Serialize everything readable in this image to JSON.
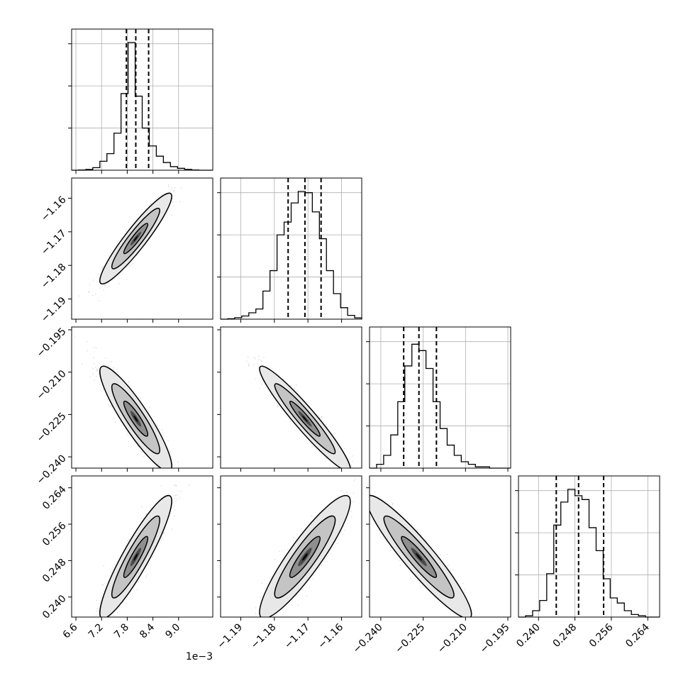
{
  "chart_data": {
    "type": "corner",
    "parameters": [
      {
        "index": 0,
        "range": [
          6.5,
          9.8
        ],
        "ticks": [
          6.6,
          7.2,
          7.8,
          8.4,
          9.0
        ],
        "tick_labels": [
          "6.6",
          "7.2",
          "7.8",
          "8.4",
          "9.0"
        ],
        "offset_text": "1e−3",
        "quantiles": [
          7.78,
          8.0,
          8.3
        ],
        "hist_bins": [
          6.5,
          6.665,
          6.83,
          6.995,
          7.16,
          7.325,
          7.49,
          7.655,
          7.82,
          7.985,
          8.15,
          8.315,
          8.48,
          8.645,
          8.81,
          8.975,
          9.14,
          9.305,
          9.47,
          9.635,
          9.8
        ],
        "hist_counts": [
          0.0,
          0.002,
          0.006,
          0.02,
          0.07,
          0.13,
          0.29,
          0.6,
          1.0,
          0.58,
          0.33,
          0.19,
          0.11,
          0.06,
          0.028,
          0.015,
          0.007,
          0.002,
          0.0,
          0.0
        ]
      },
      {
        "index": 1,
        "range": [
          -1.196,
          -1.154
        ],
        "ticks": [
          -1.19,
          -1.18,
          -1.17,
          -1.16
        ],
        "tick_labels": [
          "−1.19",
          "−1.18",
          "−1.17",
          "−1.16"
        ],
        "quantiles": [
          -1.1759,
          -1.1709,
          -1.1661
        ],
        "hist_bins": [
          -1.196,
          -1.1939,
          -1.1918,
          -1.1897,
          -1.1876,
          -1.1855,
          -1.1834,
          -1.1813,
          -1.1792,
          -1.1771,
          -1.175,
          -1.1729,
          -1.1708,
          -1.1687,
          -1.1666,
          -1.1645,
          -1.1624,
          -1.1603,
          -1.1582,
          -1.1561,
          -1.154
        ],
        "hist_counts": [
          0.0,
          0.003,
          0.012,
          0.025,
          0.05,
          0.08,
          0.22,
          0.38,
          0.66,
          0.76,
          0.91,
          1.0,
          0.99,
          0.84,
          0.63,
          0.38,
          0.2,
          0.09,
          0.03,
          0.01
        ]
      },
      {
        "index": 2,
        "range": [
          -0.244,
          -0.194
        ],
        "ticks": [
          -0.24,
          -0.225,
          -0.21,
          -0.195
        ],
        "tick_labels": [
          "−0.240",
          "−0.225",
          "−0.210",
          "−0.195"
        ],
        "quantiles": [
          -0.2319,
          -0.2265,
          -0.2203
        ],
        "hist_bins": [
          -0.244,
          -0.2415,
          -0.239,
          -0.2365,
          -0.234,
          -0.2315,
          -0.229,
          -0.2265,
          -0.224,
          -0.2215,
          -0.219,
          -0.2165,
          -0.214,
          -0.2115,
          -0.209,
          -0.2065,
          -0.204,
          -0.2015,
          -0.199,
          -0.1965,
          -0.194
        ],
        "hist_counts": [
          0.0,
          0.03,
          0.1,
          0.26,
          0.52,
          0.8,
          0.97,
          0.92,
          0.78,
          0.52,
          0.31,
          0.18,
          0.1,
          0.05,
          0.03,
          0.01,
          0.01,
          0.0,
          0.0,
          0.0
        ]
      },
      {
        "index": 3,
        "range": [
          0.2356,
          0.2666
        ],
        "ticks": [
          0.24,
          0.248,
          0.256,
          0.264
        ],
        "tick_labels": [
          "0.240",
          "0.248",
          "0.256",
          "0.264"
        ],
        "quantiles": [
          0.2439,
          0.2488,
          0.2543
        ],
        "hist_bins": [
          0.2356,
          0.23715,
          0.2387,
          0.24025,
          0.2418,
          0.24335,
          0.2449,
          0.24645,
          0.248,
          0.24955,
          0.2511,
          0.25265,
          0.2542,
          0.25575,
          0.2573,
          0.25885,
          0.2604,
          0.26195,
          0.2635,
          0.26505,
          0.2666
        ],
        "hist_counts": [
          0.0,
          0.01,
          0.05,
          0.13,
          0.34,
          0.72,
          0.9,
          1.0,
          0.95,
          0.92,
          0.7,
          0.52,
          0.3,
          0.15,
          0.11,
          0.05,
          0.02,
          0.01,
          0.0,
          0.0
        ]
      }
    ],
    "pairs": [
      {
        "x": 0,
        "y": 1,
        "mean": [
          8.0,
          -1.172
        ],
        "sigma": [
          0.28,
          0.0045
        ],
        "rho": 0.93
      },
      {
        "x": 0,
        "y": 2,
        "mean": [
          8.0,
          -0.2265
        ],
        "sigma": [
          0.28,
          0.0062
        ],
        "rho": -0.9
      },
      {
        "x": 0,
        "y": 3,
        "mean": [
          8.0,
          0.2488
        ],
        "sigma": [
          0.28,
          0.0045
        ],
        "rho": 0.91
      },
      {
        "x": 1,
        "y": 2,
        "mean": [
          -1.1709,
          -0.2265
        ],
        "sigma": [
          0.0045,
          0.0062
        ],
        "rho": -0.95
      },
      {
        "x": 1,
        "y": 3,
        "mean": [
          -1.1709,
          0.2488
        ],
        "sigma": [
          0.0045,
          0.0045
        ],
        "rho": 0.9
      },
      {
        "x": 2,
        "y": 3,
        "mean": [
          -0.2265,
          0.2488
        ],
        "sigma": [
          0.0062,
          0.0045
        ],
        "rho": -0.93
      }
    ],
    "grid": true
  }
}
